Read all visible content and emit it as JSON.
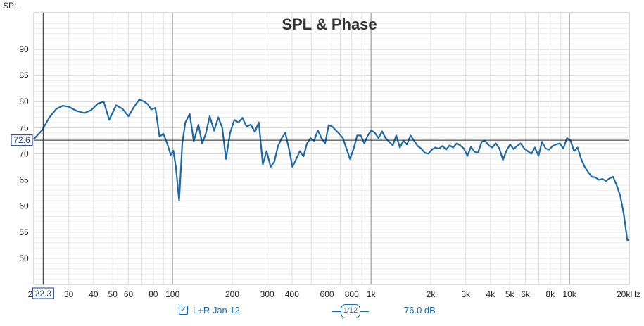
{
  "chart_data": {
    "type": "line",
    "title": "SPL & Phase",
    "ylabel": "SPL",
    "xscale": "log",
    "xlim": [
      20,
      20000
    ],
    "ylim": [
      45,
      97
    ],
    "y_ticks": [
      "90",
      "85",
      "80",
      "75",
      "70",
      "65",
      "60",
      "55",
      "50"
    ],
    "y_tick_values": [
      90,
      85,
      80,
      75,
      70,
      65,
      60,
      55,
      50
    ],
    "x_ticks": [
      "30",
      "40",
      "50",
      "60",
      "80",
      "100",
      "200",
      "300",
      "400",
      "600",
      "800",
      "1k",
      "2k",
      "3k",
      "4k",
      "5k",
      "6k",
      "8k",
      "10k",
      "20kHz"
    ],
    "x_tick_values": [
      30,
      40,
      50,
      60,
      80,
      100,
      200,
      300,
      400,
      600,
      800,
      1000,
      2000,
      3000,
      4000,
      5000,
      6000,
      8000,
      10000,
      20000
    ],
    "grid": true,
    "series_color": "#1f6aa5",
    "series": [
      {
        "name": "L+R Jan 12",
        "x": [
          20,
          22,
          24,
          26,
          28,
          30,
          33,
          36,
          39,
          42,
          45,
          48,
          52,
          56,
          60,
          64,
          68,
          72,
          75,
          78,
          82,
          86,
          90,
          94,
          98,
          101,
          104,
          108,
          112,
          116,
          122,
          128,
          135,
          141,
          147,
          154,
          162,
          170,
          178,
          186,
          195,
          205,
          215,
          225,
          236,
          248,
          260,
          272,
          285,
          298,
          312,
          326,
          340,
          355,
          370,
          386,
          402,
          420,
          438,
          457,
          476,
          496,
          517,
          540,
          563,
          587,
          612,
          638,
          665,
          693,
          722,
          752,
          784,
          818,
          852,
          888,
          925,
          964,
          1005,
          1047,
          1091,
          1137,
          1185,
          1235,
          1287,
          1341,
          1398,
          1457,
          1518,
          1582,
          1649,
          1718,
          1790,
          1866,
          1944,
          2026,
          2111,
          2200,
          2293,
          2390,
          2490,
          2595,
          2704,
          2818,
          2937,
          3060,
          3189,
          3323,
          3463,
          3609,
          3761,
          3919,
          4084,
          4256,
          4435,
          4622,
          4816,
          5019,
          5230,
          5450,
          5680,
          5919,
          6168,
          6428,
          6698,
          6980,
          7274,
          7580,
          7899,
          8231,
          8578,
          8939,
          9315,
          9707,
          10116,
          10541,
          10985,
          11447,
          11929,
          12431,
          12954,
          13499,
          14067,
          14659,
          15276,
          15919,
          16589,
          17287,
          18015,
          18773,
          19563,
          20000
        ],
        "values": [
          72.8,
          74.5,
          77.0,
          78.6,
          79.2,
          79.0,
          78.2,
          77.8,
          78.4,
          79.6,
          80.0,
          76.5,
          79.3,
          78.6,
          77.2,
          79.0,
          80.4,
          80.0,
          79.5,
          78.5,
          78.8,
          73.3,
          73.8,
          72.0,
          69.8,
          70.6,
          67.5,
          61.0,
          72.0,
          76.0,
          77.6,
          72.4,
          75.6,
          72.0,
          73.8,
          77.2,
          74.4,
          77.0,
          75.0,
          69.0,
          74.0,
          76.5,
          76.0,
          76.9,
          75.2,
          75.6,
          74.2,
          76.0,
          68.0,
          70.5,
          67.5,
          68.5,
          71.5,
          73.0,
          74.0,
          71.0,
          67.5,
          69.0,
          70.5,
          69.5,
          72.0,
          73.0,
          72.5,
          74.5,
          73.0,
          72.0,
          75.5,
          75.2,
          74.5,
          73.8,
          73.0,
          71.0,
          69.0,
          71.0,
          73.5,
          73.5,
          72.0,
          73.5,
          74.5,
          74.0,
          73.0,
          74.3,
          73.0,
          72.3,
          71.6,
          73.5,
          71.2,
          72.5,
          71.8,
          73.5,
          72.5,
          71.5,
          71.0,
          70.2,
          70.0,
          70.8,
          71.2,
          71.0,
          71.5,
          70.8,
          71.6,
          71.2,
          72.0,
          71.6,
          71.0,
          69.6,
          71.3,
          70.4,
          70.2,
          72.3,
          72.5,
          71.6,
          71.2,
          72.0,
          71.0,
          68.8,
          70.6,
          71.8,
          70.9,
          71.5,
          72.0,
          71.0,
          70.5,
          70.0,
          71.2,
          69.6,
          72.3,
          71.0,
          70.8,
          71.5,
          71.8,
          72.0,
          71.0,
          73.0,
          72.6,
          70.5,
          71.2,
          69.0,
          67.5,
          66.5,
          65.6,
          65.5,
          65.0,
          65.2,
          64.8,
          65.3,
          65.6,
          64.0,
          62.0,
          58.5,
          53.5,
          53.5
        ]
      }
    ],
    "cursor_y": "72.6",
    "cursor_x": "22.3",
    "x_first_label": "2"
  },
  "legend": {
    "series_label": "L+R Jan 12",
    "checked": "✓",
    "smoothing_num": "1",
    "smoothing_den": "12",
    "level": "76.0 dB"
  }
}
